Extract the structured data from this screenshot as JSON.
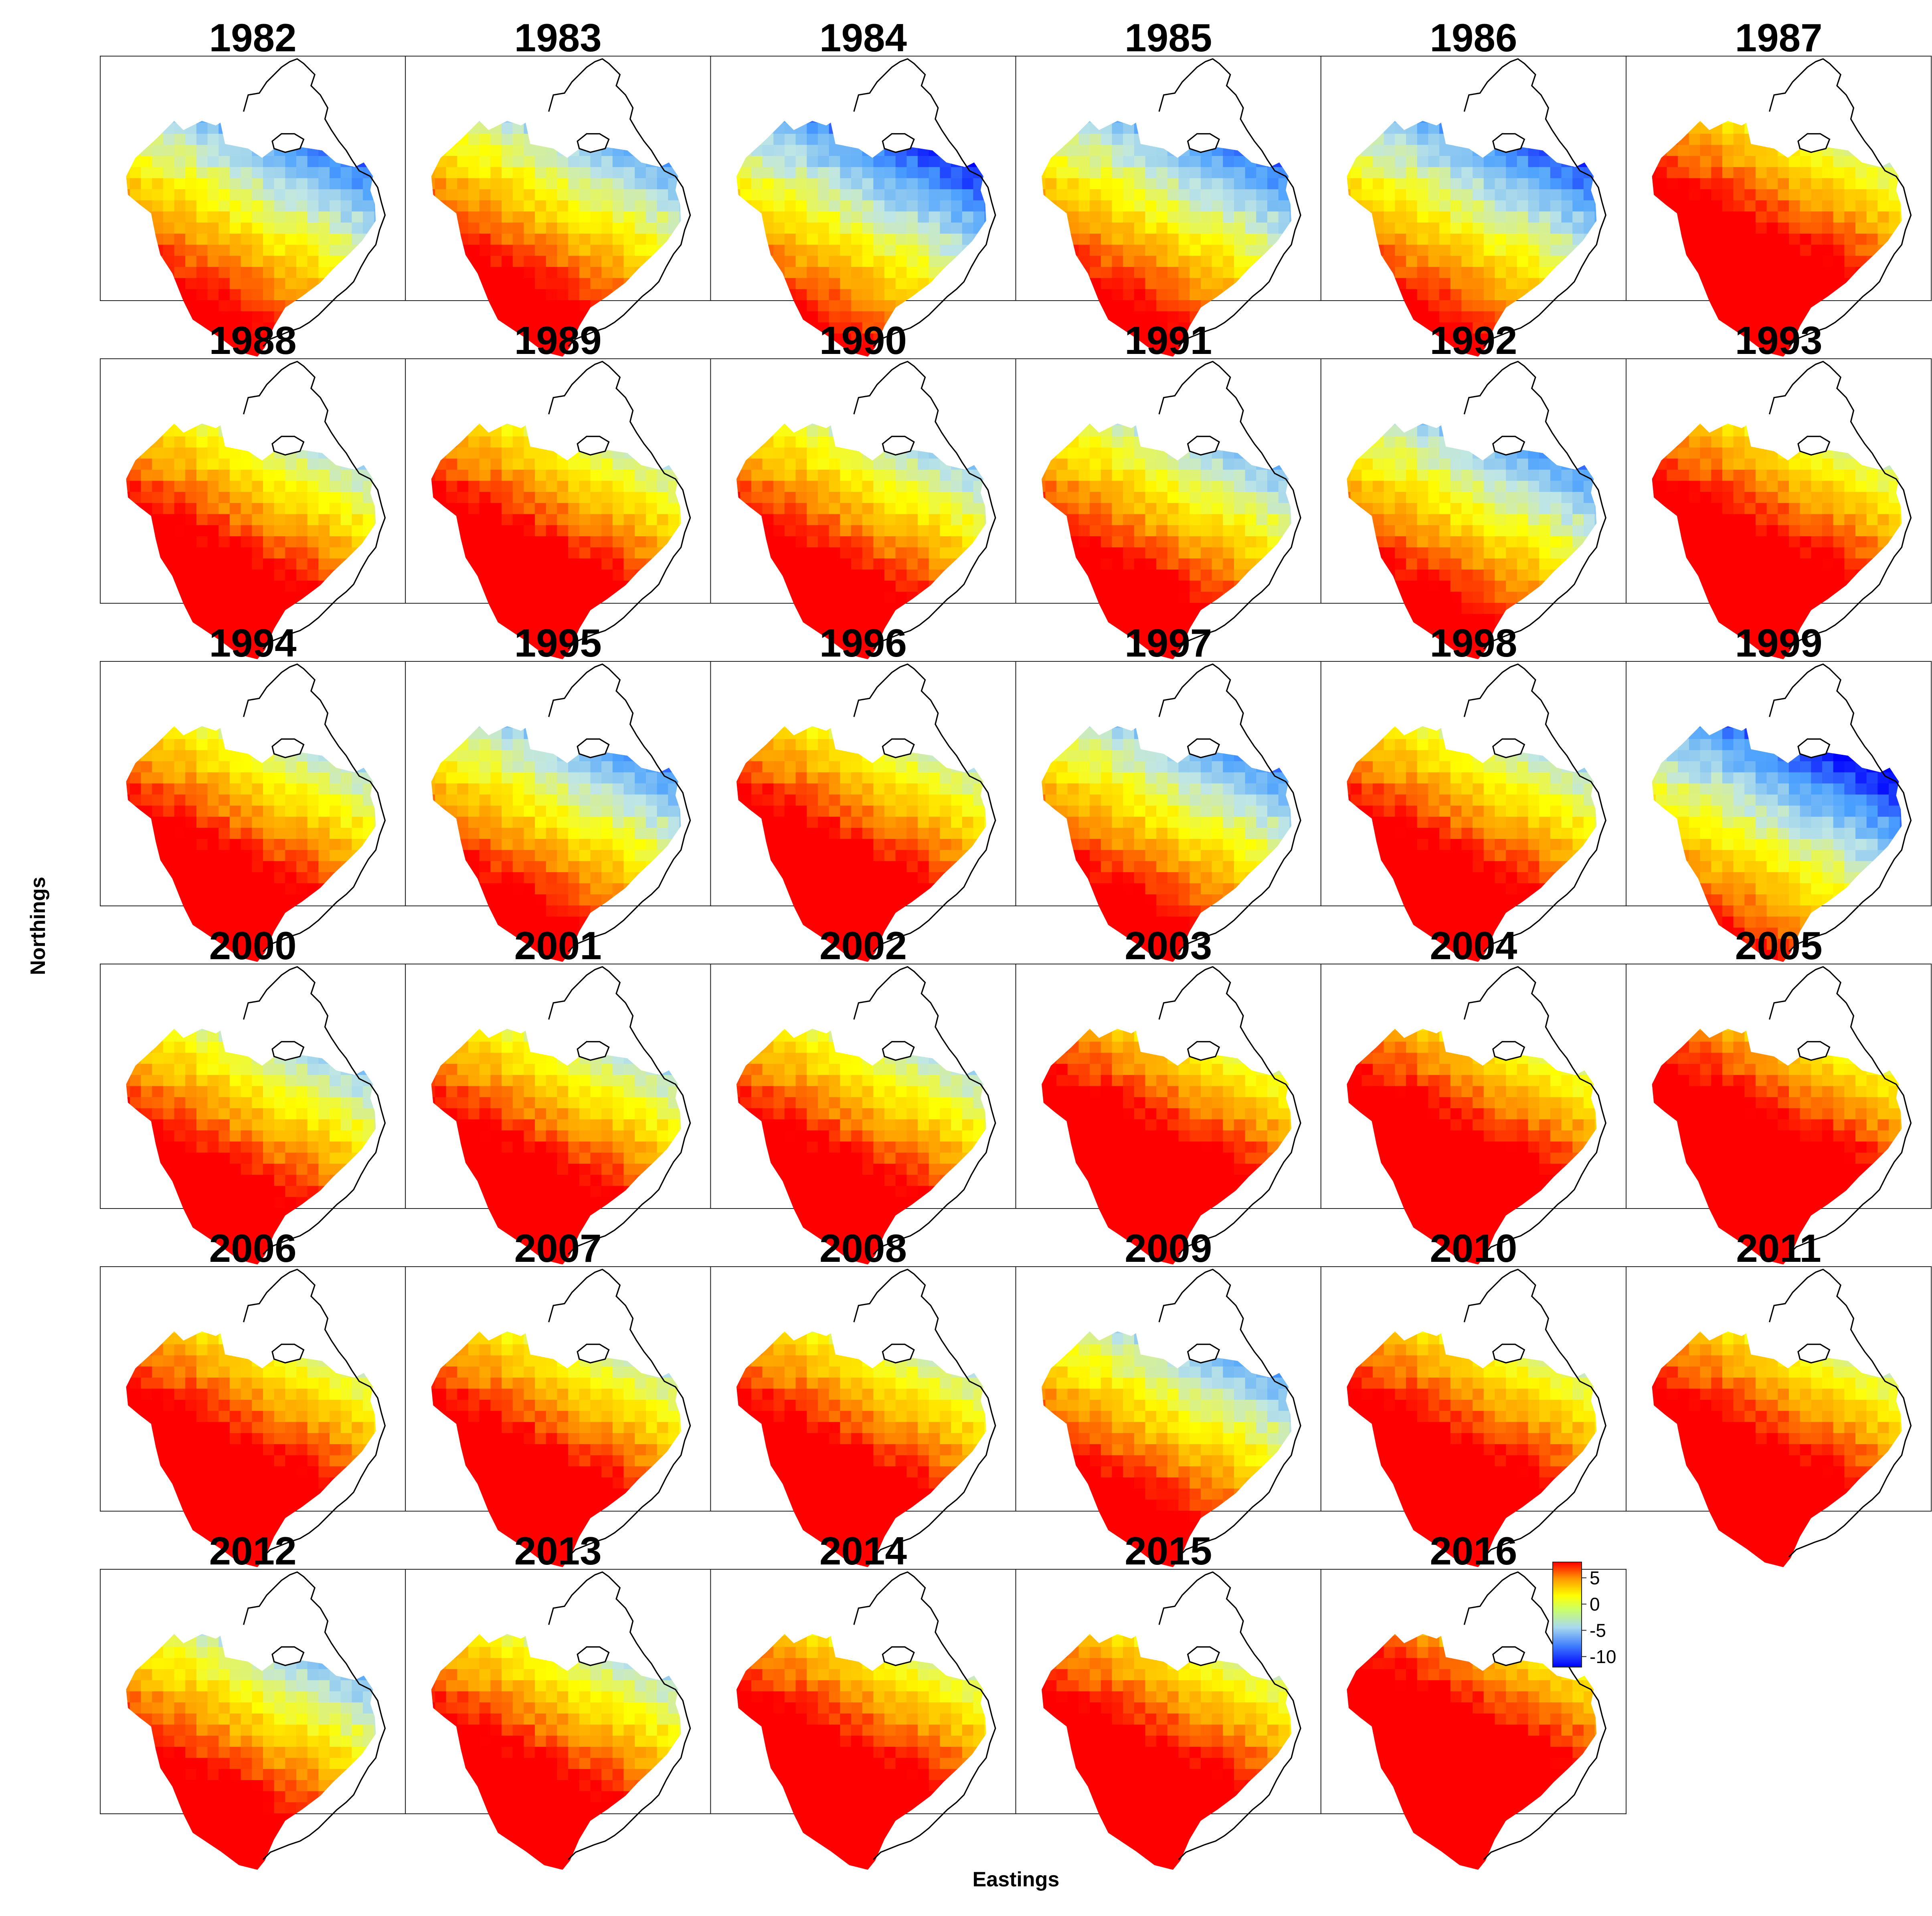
{
  "axes": {
    "xlabel": "Eastings",
    "ylabel": "Northings"
  },
  "legend": {
    "scale_min": -12,
    "scale_max": 8,
    "ticks": [
      {
        "value": 5,
        "label": "5"
      },
      {
        "value": 0,
        "label": "0"
      },
      {
        "value": -5,
        "label": "-5"
      },
      {
        "value": -10,
        "label": "-10"
      }
    ],
    "colors": [
      "#0000ff",
      "#4aa0ff",
      "#bfe6e6",
      "#ffff00",
      "#ff9900",
      "#ff0000"
    ]
  },
  "panels": [
    {
      "year": "1982",
      "anomaly": -6
    },
    {
      "year": "1983",
      "anomaly": -4
    },
    {
      "year": "1984",
      "anomaly": -8
    },
    {
      "year": "1985",
      "anomaly": -6
    },
    {
      "year": "1986",
      "anomaly": -7
    },
    {
      "year": "1987",
      "anomaly": 1
    },
    {
      "year": "1988",
      "anomaly": -1
    },
    {
      "year": "1989",
      "anomaly": 0
    },
    {
      "year": "1990",
      "anomaly": -2
    },
    {
      "year": "1991",
      "anomaly": -3
    },
    {
      "year": "1992",
      "anomaly": -5
    },
    {
      "year": "1993",
      "anomaly": 1
    },
    {
      "year": "1994",
      "anomaly": -1
    },
    {
      "year": "1995",
      "anomaly": -5
    },
    {
      "year": "1996",
      "anomaly": 0
    },
    {
      "year": "1997",
      "anomaly": -5
    },
    {
      "year": "1998",
      "anomaly": -1
    },
    {
      "year": "1999",
      "anomaly": -9
    },
    {
      "year": "2000",
      "anomaly": -2
    },
    {
      "year": "2001",
      "anomaly": -1
    },
    {
      "year": "2002",
      "anomaly": -1
    },
    {
      "year": "2003",
      "anomaly": 2
    },
    {
      "year": "2004",
      "anomaly": 2
    },
    {
      "year": "2005",
      "anomaly": 3
    },
    {
      "year": "2006",
      "anomaly": 1
    },
    {
      "year": "2007",
      "anomaly": 0
    },
    {
      "year": "2008",
      "anomaly": 0
    },
    {
      "year": "2009",
      "anomaly": -4
    },
    {
      "year": "2010",
      "anomaly": 1
    },
    {
      "year": "2011",
      "anomaly": 1
    },
    {
      "year": "2012",
      "anomaly": -3
    },
    {
      "year": "2013",
      "anomaly": -1
    },
    {
      "year": "2014",
      "anomaly": 1
    },
    {
      "year": "2015",
      "anomaly": 1
    },
    {
      "year": "2016",
      "anomaly": 4
    }
  ]
}
